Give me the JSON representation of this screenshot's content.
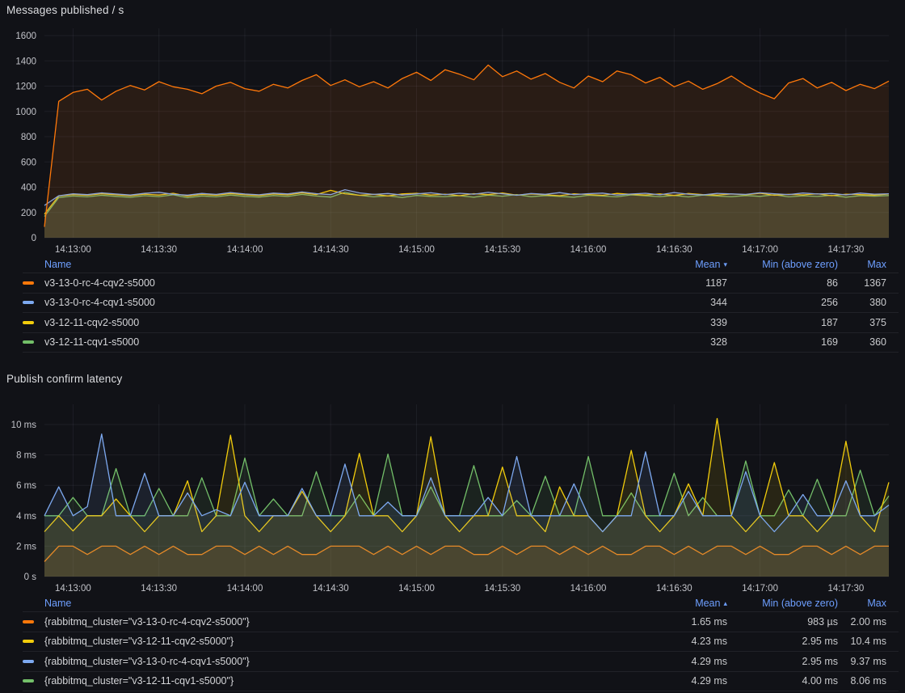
{
  "colors": {
    "orange": "#ff780a",
    "blue": "#7da9f0",
    "yellow": "#f2cc0c",
    "green": "#73bf69",
    "header_blue": "#6e9fff",
    "grid": "rgba(204,204,220,0.07)",
    "axis_text": "#c2c3c9",
    "background": "#111217"
  },
  "panel1": {
    "title": "Messages published / s",
    "legend": {
      "columns": {
        "name": "Name",
        "mean": "Mean",
        "min": "Min (above zero)",
        "max": "Max"
      },
      "sort_icon": "▾",
      "sort": {
        "column": "mean",
        "dir": "desc"
      },
      "rows": [
        {
          "name": "v3-13-0-rc-4-cqv2-s5000",
          "color": "orange",
          "mean": "1187",
          "min": "86",
          "max": "1367"
        },
        {
          "name": "v3-13-0-rc-4-cqv1-s5000",
          "color": "blue",
          "mean": "344",
          "min": "256",
          "max": "380"
        },
        {
          "name": "v3-12-11-cqv2-s5000",
          "color": "yellow",
          "mean": "339",
          "min": "187",
          "max": "375"
        },
        {
          "name": "v3-12-11-cqv1-s5000",
          "color": "green",
          "mean": "328",
          "min": "169",
          "max": "360"
        }
      ]
    },
    "chart_data": {
      "type": "line",
      "title": "Messages published / s",
      "legend_position": "bottom-table",
      "grid": true,
      "ylim": [
        0,
        1600
      ],
      "y_ticks": [
        {
          "label": "0",
          "value": 0
        },
        {
          "label": "200",
          "value": 200
        },
        {
          "label": "400",
          "value": 400
        },
        {
          "label": "600",
          "value": 600
        },
        {
          "label": "800",
          "value": 800
        },
        {
          "label": "1000",
          "value": 1000
        },
        {
          "label": "1200",
          "value": 1200
        },
        {
          "label": "1400",
          "value": 1400
        },
        {
          "label": "1600",
          "value": 1600
        }
      ],
      "x_tick_labels": [
        "14:13:00",
        "14:13:30",
        "14:14:00",
        "14:14:30",
        "14:15:00",
        "14:15:30",
        "14:16:00",
        "14:16:30",
        "14:17:00",
        "14:17:30"
      ],
      "x_span_seconds": 295,
      "x_tick_offset_seconds": 10,
      "x_tick_step_seconds": 30,
      "sample_interval_seconds": 5,
      "series": [
        {
          "name": "v3-12-11-cqv1-s5000",
          "color": "green",
          "values": [
            169,
            318,
            330,
            324,
            336,
            328,
            320,
            333,
            326,
            340,
            317,
            331,
            324,
            338,
            328,
            322,
            334,
            327,
            343,
            330,
            322,
            360,
            336,
            324,
            332,
            319,
            335,
            328,
            326,
            333,
            321,
            337,
            329,
            342,
            325,
            334,
            328,
            321,
            336,
            330,
            324,
            339,
            332,
            326,
            335,
            323,
            338,
            330,
            325,
            334,
            328,
            340,
            324,
            332,
            327,
            336,
            321,
            333,
            329,
            334
          ]
        },
        {
          "name": "v3-12-11-cqv2-s5000",
          "color": "yellow",
          "values": [
            187,
            330,
            342,
            336,
            348,
            340,
            332,
            345,
            338,
            352,
            329,
            343,
            336,
            350,
            340,
            334,
            346,
            339,
            355,
            342,
            375,
            348,
            336,
            344,
            331,
            347,
            352,
            338,
            345,
            333,
            349,
            341,
            354,
            337,
            346,
            340,
            333,
            348,
            342,
            336,
            351,
            344,
            338,
            347,
            335,
            350,
            342,
            337,
            346,
            340,
            352,
            336,
            344,
            339,
            348,
            333,
            345,
            341,
            337,
            346
          ]
        },
        {
          "name": "v3-13-0-rc-4-cqv1-s5000",
          "color": "blue",
          "values": [
            256,
            332,
            348,
            341,
            355,
            346,
            338,
            352,
            360,
            344,
            337,
            351,
            343,
            358,
            346,
            340,
            353,
            347,
            362,
            349,
            341,
            380,
            355,
            343,
            350,
            338,
            347,
            356,
            342,
            352,
            345,
            359,
            348,
            336,
            350,
            344,
            357,
            341,
            349,
            353,
            338,
            346,
            352,
            340,
            358,
            345,
            339,
            351,
            347,
            343,
            356,
            348,
            342,
            354,
            346,
            350,
            339,
            353,
            345,
            348
          ]
        },
        {
          "name": "v3-13-0-rc-4-cqv2-s5000",
          "color": "orange",
          "values": [
            86,
            1080,
            1150,
            1175,
            1090,
            1160,
            1205,
            1170,
            1235,
            1195,
            1175,
            1140,
            1200,
            1230,
            1180,
            1160,
            1215,
            1185,
            1245,
            1290,
            1205,
            1250,
            1195,
            1235,
            1185,
            1260,
            1310,
            1245,
            1330,
            1295,
            1250,
            1367,
            1275,
            1320,
            1255,
            1300,
            1230,
            1185,
            1280,
            1235,
            1320,
            1290,
            1225,
            1270,
            1195,
            1240,
            1175,
            1220,
            1280,
            1205,
            1145,
            1100,
            1225,
            1260,
            1185,
            1230,
            1165,
            1215,
            1180,
            1240
          ]
        }
      ]
    }
  },
  "panel2": {
    "title": "Publish confirm latency",
    "legend": {
      "columns": {
        "name": "Name",
        "mean": "Mean",
        "min": "Min (above zero)",
        "max": "Max"
      },
      "sort_icon": "▴",
      "sort": {
        "column": "mean",
        "dir": "asc"
      },
      "rows": [
        {
          "name": "{rabbitmq_cluster=\"v3-13-0-rc-4-cqv2-s5000\"}",
          "color": "orange",
          "mean": "1.65 ms",
          "min": "983 µs",
          "max": "2.00 ms"
        },
        {
          "name": "{rabbitmq_cluster=\"v3-12-11-cqv2-s5000\"}",
          "color": "yellow",
          "mean": "4.23 ms",
          "min": "2.95 ms",
          "max": "10.4 ms"
        },
        {
          "name": "{rabbitmq_cluster=\"v3-13-0-rc-4-cqv1-s5000\"}",
          "color": "blue",
          "mean": "4.29 ms",
          "min": "2.95 ms",
          "max": "9.37 ms"
        },
        {
          "name": "{rabbitmq_cluster=\"v3-12-11-cqv1-s5000\"}",
          "color": "green",
          "mean": "4.29 ms",
          "min": "4.00 ms",
          "max": "8.06 ms"
        }
      ]
    },
    "chart_data": {
      "type": "line",
      "title": "Publish confirm latency",
      "legend_position": "bottom-table",
      "grid": true,
      "unit": "ms",
      "ylim": [
        0,
        10
      ],
      "y_ticks": [
        {
          "label": "0 s",
          "value": 0
        },
        {
          "label": "2 ms",
          "value": 2
        },
        {
          "label": "4 ms",
          "value": 4
        },
        {
          "label": "6 ms",
          "value": 6
        },
        {
          "label": "8 ms",
          "value": 8
        },
        {
          "label": "10 ms",
          "value": 10
        }
      ],
      "x_tick_labels": [
        "14:13:00",
        "14:13:30",
        "14:14:00",
        "14:14:30",
        "14:15:00",
        "14:15:30",
        "14:16:00",
        "14:16:30",
        "14:17:00",
        "14:17:30"
      ],
      "x_span_seconds": 295,
      "x_tick_offset_seconds": 10,
      "x_tick_step_seconds": 30,
      "sample_interval_seconds": 5,
      "series": [
        {
          "name": "{rabbitmq_cluster=\"v3-13-0-rc-4-cqv2-s5000\"}",
          "color": "orange",
          "values": [
            0.983,
            2,
            2,
            1.45,
            2,
            2,
            1.45,
            2,
            1.45,
            2,
            1.45,
            1.45,
            2,
            2,
            1.45,
            2,
            1.45,
            2,
            1.45,
            1.45,
            2,
            2,
            2,
            1.45,
            2,
            1.45,
            2,
            1.45,
            2,
            2,
            1.45,
            1.45,
            2,
            1.45,
            2,
            2,
            1.45,
            2,
            1.45,
            2,
            1.45,
            1.45,
            2,
            2,
            1.45,
            2,
            1.45,
            2,
            2,
            1.45,
            2,
            1.45,
            1.45,
            2,
            2,
            1.45,
            2,
            1.45,
            2,
            2
          ]
        },
        {
          "name": "{rabbitmq_cluster=\"v3-12-11-cqv1-s5000\"}",
          "color": "green",
          "values": [
            4,
            4,
            5.2,
            4,
            4,
            7.1,
            4,
            4,
            5.8,
            4,
            4,
            6.5,
            4,
            4,
            7.8,
            4,
            5.1,
            4,
            4,
            6.9,
            4,
            4,
            5.4,
            4,
            8.06,
            4,
            4,
            5.9,
            4,
            4,
            7.3,
            4,
            4,
            5,
            4,
            6.6,
            4,
            4,
            7.9,
            4,
            4,
            5.5,
            4,
            4,
            6.8,
            4,
            5.2,
            4,
            4,
            7.6,
            4,
            4,
            5.7,
            4,
            6.4,
            4,
            4,
            7,
            4,
            5.3
          ]
        },
        {
          "name": "{rabbitmq_cluster=\"v3-12-11-cqv2-s5000\"}",
          "color": "yellow",
          "values": [
            2.95,
            4,
            3,
            4,
            4,
            5.1,
            4,
            2.95,
            4,
            4,
            6.3,
            2.95,
            4,
            9.3,
            4,
            2.95,
            4,
            4,
            5.6,
            4,
            2.95,
            4,
            8.1,
            4,
            4,
            2.95,
            4,
            9.2,
            4,
            2.95,
            4,
            4,
            7.2,
            4,
            4,
            2.95,
            5.9,
            4,
            4,
            2.95,
            4,
            8.3,
            4,
            2.95,
            4,
            6.1,
            4,
            10.4,
            4,
            2.95,
            4,
            7.5,
            4,
            4,
            2.95,
            4,
            8.9,
            4,
            2.95,
            6.2
          ]
        },
        {
          "name": "{rabbitmq_cluster=\"v3-13-0-rc-4-cqv1-s5000\"}",
          "color": "blue",
          "values": [
            4,
            5.9,
            4,
            4.6,
            9.37,
            4,
            4,
            6.8,
            4,
            4,
            5.5,
            4,
            4.4,
            4,
            6.2,
            4,
            4,
            4,
            5.8,
            4,
            4,
            7.4,
            4,
            4,
            4.9,
            4,
            4,
            6.5,
            4,
            4,
            4,
            5.2,
            4,
            7.9,
            4,
            4,
            4,
            6.1,
            4,
            2.95,
            4,
            4,
            8.2,
            4,
            4,
            5.6,
            4,
            4,
            4,
            6.9,
            4,
            2.95,
            4,
            5.4,
            4,
            4,
            6.3,
            4,
            4,
            4.7
          ]
        }
      ]
    }
  }
}
